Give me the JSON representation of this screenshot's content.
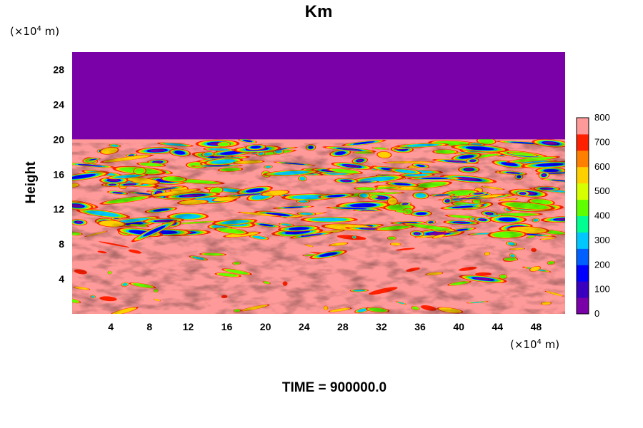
{
  "chart_data": {
    "type": "heatmap",
    "title": "Km",
    "ylabel": "Height",
    "xlabel": "",
    "x_unit": {
      "prefix": "(×10",
      "exp": "4",
      "suffix": " m)"
    },
    "y_unit": {
      "prefix": "(×10",
      "exp": "4",
      "suffix": " m)"
    },
    "xlim": [
      0,
      51
    ],
    "ylim": [
      0,
      30
    ],
    "x_ticks": [
      4,
      8,
      12,
      16,
      20,
      24,
      28,
      32,
      36,
      40,
      44,
      48
    ],
    "y_ticks": [
      4,
      8,
      12,
      16,
      20,
      24,
      28
    ],
    "grid": false,
    "time_label": "TIME = 900000.0",
    "colorbar": {
      "min": 0,
      "max": 800,
      "ticks": [
        0,
        100,
        200,
        300,
        400,
        500,
        600,
        700,
        800
      ],
      "colors": [
        "#7a00a8",
        "#3a00c0",
        "#0000ff",
        "#0060ff",
        "#00c8ff",
        "#00ff90",
        "#60ff00",
        "#d8ff00",
        "#ffd000",
        "#ff8000",
        "#ff2000",
        "#ff9a9a"
      ]
    },
    "field_description": {
      "upper_region_value": 0,
      "upper_region_bottom": 20,
      "background_value": 800
    }
  }
}
